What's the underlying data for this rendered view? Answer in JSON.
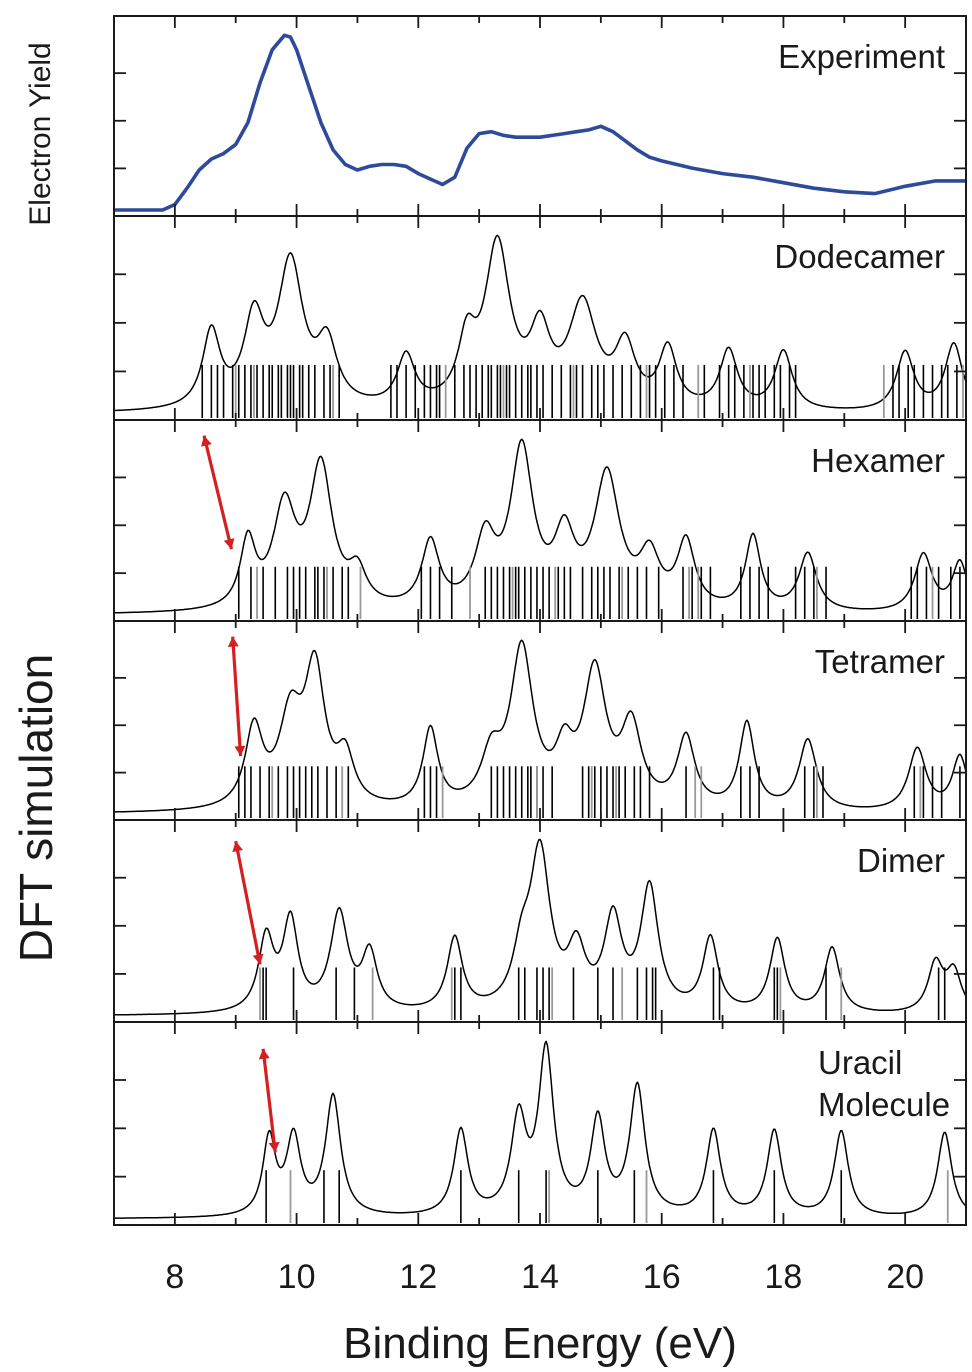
{
  "figure": {
    "y_label_top": "Electron Yield",
    "y_label_side": "DFT simulation",
    "x_label": "Binding Energy (eV)"
  },
  "chart_data": {
    "type": "line",
    "xlabel": "Binding Energy (eV)",
    "xlim": [
      7,
      21
    ],
    "x_ticks": [
      8,
      10,
      12,
      14,
      16,
      18,
      20
    ],
    "grid": false,
    "colors": {
      "experiment": "#2e4a9a",
      "simulation": "#000000",
      "arrow": "#d42020"
    },
    "panels": [
      {
        "name": "experiment",
        "label": "Experiment",
        "curve_color": "#2e4a9a",
        "x": [
          7.8,
          8.0,
          8.2,
          8.4,
          8.6,
          8.8,
          9.0,
          9.2,
          9.4,
          9.6,
          9.8,
          9.9,
          10.0,
          10.2,
          10.4,
          10.6,
          10.8,
          11.0,
          11.2,
          11.4,
          11.6,
          11.8,
          12.0,
          12.2,
          12.4,
          12.6,
          12.8,
          13.0,
          13.2,
          13.4,
          13.6,
          13.8,
          14.0,
          14.2,
          14.4,
          14.6,
          14.8,
          15.0,
          15.2,
          15.4,
          15.6,
          15.8,
          16.0,
          16.5,
          17.0,
          17.5,
          18.0,
          18.5,
          19.0,
          19.5,
          20.0,
          20.5,
          21.0
        ],
        "y": [
          0.0,
          0.03,
          0.12,
          0.22,
          0.28,
          0.31,
          0.36,
          0.48,
          0.7,
          0.88,
          0.96,
          0.95,
          0.88,
          0.68,
          0.48,
          0.33,
          0.25,
          0.22,
          0.24,
          0.25,
          0.25,
          0.24,
          0.2,
          0.17,
          0.14,
          0.18,
          0.34,
          0.42,
          0.43,
          0.41,
          0.4,
          0.4,
          0.4,
          0.41,
          0.42,
          0.43,
          0.44,
          0.46,
          0.43,
          0.38,
          0.33,
          0.29,
          0.27,
          0.23,
          0.2,
          0.18,
          0.15,
          0.12,
          0.1,
          0.09,
          0.13,
          0.16,
          0.16
        ]
      },
      {
        "name": "dodecamer",
        "label": "Dodecamer",
        "peaks": [
          [
            8.6,
            0.45,
            0.35
          ],
          [
            9.3,
            0.5,
            0.4
          ],
          [
            9.9,
            0.85,
            0.5
          ],
          [
            10.5,
            0.35,
            0.4
          ],
          [
            11.8,
            0.3,
            0.35
          ],
          [
            12.8,
            0.35,
            0.35
          ],
          [
            13.3,
            0.95,
            0.5
          ],
          [
            14.0,
            0.4,
            0.4
          ],
          [
            14.7,
            0.6,
            0.55
          ],
          [
            15.4,
            0.35,
            0.4
          ],
          [
            16.1,
            0.35,
            0.35
          ],
          [
            17.1,
            0.35,
            0.35
          ],
          [
            18.0,
            0.35,
            0.35
          ],
          [
            20.0,
            0.35,
            0.35
          ],
          [
            20.8,
            0.4,
            0.35
          ]
        ],
        "sticks_black": [
          8.45,
          8.6,
          8.7,
          8.8,
          8.95,
          9.05,
          9.15,
          9.25,
          9.35,
          9.45,
          9.55,
          9.6,
          9.7,
          9.75,
          9.85,
          9.9,
          9.95,
          10.05,
          10.1,
          10.2,
          10.3,
          10.45,
          10.55,
          10.7,
          11.55,
          11.65,
          11.8,
          11.95,
          12.1,
          12.2,
          12.3,
          12.35,
          12.6,
          12.75,
          12.85,
          12.95,
          13.05,
          13.15,
          13.2,
          13.3,
          13.35,
          13.45,
          13.5,
          13.6,
          13.7,
          13.8,
          13.85,
          13.95,
          14.05,
          14.2,
          14.35,
          14.5,
          14.6,
          14.7,
          14.85,
          14.95,
          15.05,
          15.2,
          15.35,
          15.5,
          15.65,
          15.8,
          15.9,
          16.05,
          16.2,
          16.35,
          16.7,
          16.95,
          17.1,
          17.2,
          17.35,
          17.5,
          17.6,
          17.7,
          17.85,
          17.95,
          18.1,
          18.2,
          19.8,
          19.9,
          20.05,
          20.15,
          20.3,
          20.45,
          20.6,
          20.7,
          20.85
        ],
        "sticks_gray": [
          9.0,
          9.3,
          10.6,
          12.45,
          13.4,
          14.55,
          15.75,
          16.6,
          17.45,
          19.65,
          20.95
        ]
      },
      {
        "name": "hexamer",
        "label": "Hexamer",
        "peaks": [
          [
            9.2,
            0.4,
            0.3
          ],
          [
            9.8,
            0.6,
            0.45
          ],
          [
            10.4,
            0.85,
            0.45
          ],
          [
            11.0,
            0.2,
            0.35
          ],
          [
            12.2,
            0.4,
            0.35
          ],
          [
            13.1,
            0.4,
            0.4
          ],
          [
            13.7,
            0.95,
            0.45
          ],
          [
            14.4,
            0.4,
            0.4
          ],
          [
            15.1,
            0.8,
            0.5
          ],
          [
            15.8,
            0.3,
            0.4
          ],
          [
            16.4,
            0.4,
            0.35
          ],
          [
            17.5,
            0.45,
            0.3
          ],
          [
            18.4,
            0.35,
            0.35
          ],
          [
            20.3,
            0.35,
            0.35
          ],
          [
            20.9,
            0.3,
            0.3
          ]
        ],
        "sticks_black": [
          9.05,
          9.25,
          9.45,
          9.65,
          9.85,
          9.95,
          10.05,
          10.15,
          10.3,
          10.35,
          10.45,
          10.6,
          10.75,
          10.85,
          12.05,
          12.2,
          12.35,
          12.55,
          13.1,
          13.2,
          13.3,
          13.4,
          13.5,
          13.6,
          13.65,
          13.75,
          13.85,
          13.95,
          14.05,
          14.15,
          14.3,
          14.4,
          14.5,
          14.7,
          14.85,
          14.95,
          15.05,
          15.15,
          15.3,
          15.45,
          15.6,
          15.75,
          15.95,
          16.35,
          16.5,
          16.65,
          16.8,
          17.3,
          17.45,
          17.6,
          17.75,
          18.2,
          18.35,
          18.5,
          18.7,
          20.1,
          20.2,
          20.35,
          20.55,
          20.75,
          20.9
        ],
        "sticks_gray": [
          9.35,
          10.5,
          11.05,
          12.85,
          13.55,
          14.25,
          15.35,
          16.45,
          16.6,
          18.55,
          20.45
        ]
      },
      {
        "name": "tetramer",
        "label": "Tetramer",
        "peaks": [
          [
            9.3,
            0.5,
            0.35
          ],
          [
            9.9,
            0.55,
            0.45
          ],
          [
            10.3,
            0.85,
            0.4
          ],
          [
            10.8,
            0.3,
            0.35
          ],
          [
            12.2,
            0.5,
            0.3
          ],
          [
            13.2,
            0.3,
            0.4
          ],
          [
            13.7,
            1.0,
            0.45
          ],
          [
            14.4,
            0.3,
            0.35
          ],
          [
            14.9,
            0.85,
            0.45
          ],
          [
            15.5,
            0.5,
            0.4
          ],
          [
            16.4,
            0.45,
            0.35
          ],
          [
            17.4,
            0.55,
            0.3
          ],
          [
            18.4,
            0.45,
            0.35
          ],
          [
            20.2,
            0.4,
            0.35
          ],
          [
            20.9,
            0.35,
            0.3
          ]
        ],
        "sticks_black": [
          9.05,
          9.15,
          9.25,
          9.4,
          9.55,
          9.7,
          9.85,
          9.95,
          10.05,
          10.15,
          10.25,
          10.35,
          10.5,
          10.65,
          10.85,
          12.1,
          12.2,
          12.3,
          13.2,
          13.3,
          13.4,
          13.5,
          13.6,
          13.7,
          13.8,
          13.85,
          13.95,
          14.05,
          14.2,
          14.7,
          14.8,
          14.9,
          15.0,
          15.1,
          15.2,
          15.3,
          15.4,
          15.55,
          15.65,
          15.8,
          16.4,
          17.3,
          17.45,
          17.6,
          18.35,
          18.5,
          18.65,
          20.15,
          20.3,
          20.45,
          20.6,
          20.9
        ],
        "sticks_gray": [
          9.6,
          10.75,
          12.4,
          13.95,
          14.85,
          15.25,
          16.55,
          16.65,
          18.55,
          20.25
        ]
      },
      {
        "name": "dimer",
        "label": "Dimer",
        "peaks": [
          [
            9.5,
            0.45,
            0.3
          ],
          [
            9.9,
            0.55,
            0.3
          ],
          [
            10.7,
            0.6,
            0.35
          ],
          [
            11.2,
            0.35,
            0.3
          ],
          [
            12.6,
            0.45,
            0.3
          ],
          [
            13.7,
            0.3,
            0.35
          ],
          [
            14.0,
            0.95,
            0.4
          ],
          [
            14.6,
            0.35,
            0.35
          ],
          [
            15.2,
            0.55,
            0.35
          ],
          [
            15.8,
            0.75,
            0.35
          ],
          [
            16.8,
            0.45,
            0.3
          ],
          [
            17.9,
            0.45,
            0.3
          ],
          [
            18.8,
            0.4,
            0.3
          ],
          [
            20.5,
            0.3,
            0.3
          ],
          [
            20.8,
            0.25,
            0.3
          ]
        ],
        "sticks_black": [
          9.45,
          9.5,
          9.95,
          10.65,
          10.95,
          12.6,
          12.7,
          13.65,
          13.75,
          13.95,
          14.05,
          14.15,
          14.55,
          14.95,
          15.2,
          15.6,
          15.75,
          15.85,
          15.9,
          16.85,
          16.95,
          17.85,
          17.9,
          18.7,
          20.55,
          20.65
        ],
        "sticks_gray": [
          9.4,
          11.25,
          12.55,
          14.2,
          15.35,
          17.95,
          18.95
        ]
      },
      {
        "name": "uracil-molecule",
        "label": "Uracil\nMolecule",
        "peaks": [
          [
            9.55,
            0.45,
            0.25
          ],
          [
            9.95,
            0.45,
            0.28
          ],
          [
            10.6,
            0.7,
            0.3
          ],
          [
            12.7,
            0.5,
            0.28
          ],
          [
            13.65,
            0.55,
            0.3
          ],
          [
            14.1,
            0.95,
            0.3
          ],
          [
            14.95,
            0.55,
            0.28
          ],
          [
            15.6,
            0.75,
            0.3
          ],
          [
            16.85,
            0.5,
            0.28
          ],
          [
            17.85,
            0.5,
            0.28
          ],
          [
            18.95,
            0.5,
            0.28
          ],
          [
            20.65,
            0.5,
            0.28
          ]
        ],
        "sticks_black": [
          9.5,
          10.45,
          10.7,
          12.7,
          13.65,
          14.1,
          14.95,
          15.55,
          16.85,
          17.85,
          18.95
        ],
        "sticks_gray": [
          9.9,
          14.15,
          15.75,
          20.7
        ]
      }
    ],
    "arrows": [
      {
        "panel": "hexamer",
        "from": [
          8.48,
          0.98
        ],
        "to": [
          8.93,
          0.36
        ]
      },
      {
        "panel": "tetramer",
        "from": [
          8.95,
          0.98
        ],
        "to": [
          9.08,
          0.32
        ]
      },
      {
        "panel": "dimer",
        "from": [
          9.0,
          0.95
        ],
        "to": [
          9.4,
          0.28
        ]
      },
      {
        "panel": "uracil-molecule",
        "from": [
          9.45,
          0.92
        ],
        "to": [
          9.65,
          0.36
        ]
      }
    ]
  }
}
